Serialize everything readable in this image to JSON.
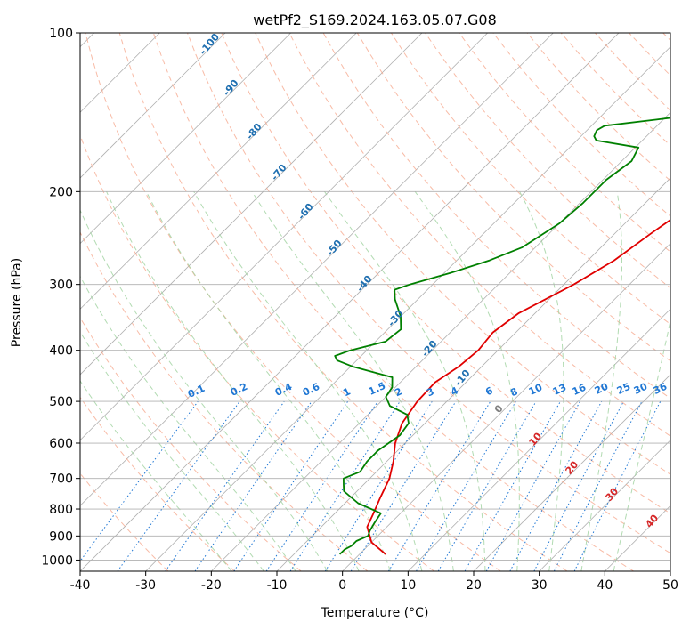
{
  "chart_data": {
    "type": "line",
    "subtype": "skew-t log-p",
    "title": "wetPf2_S169.2024.163.05.07.G08",
    "xlabel": "Temperature (°C)",
    "ylabel": "Pressure (hPa)",
    "xlim": [
      -40,
      50
    ],
    "ylim": [
      1050,
      100
    ],
    "yscale": "log",
    "grid": true,
    "xticks": [
      "-40",
      "-30",
      "-20",
      "-10",
      "0",
      "10",
      "20",
      "30",
      "40",
      "50"
    ],
    "yticks": [
      "100",
      "200",
      "300",
      "400",
      "500",
      "600",
      "700",
      "800",
      "900",
      "1000"
    ],
    "series": [
      {
        "role": "temperature",
        "color": "#e00000",
        "points": [
          [
            4,
            975
          ],
          [
            0,
            925
          ],
          [
            -3,
            865
          ],
          [
            -4,
            820
          ],
          [
            -5.5,
            760
          ],
          [
            -7,
            700
          ],
          [
            -9,
            650
          ],
          [
            -11.5,
            600
          ],
          [
            -13.5,
            550
          ],
          [
            -14.5,
            500
          ],
          [
            -14.7,
            460
          ],
          [
            -13.5,
            430
          ],
          [
            -13,
            400
          ],
          [
            -13.5,
            370
          ],
          [
            -12.5,
            340
          ],
          [
            -8.5,
            300
          ],
          [
            -6,
            270
          ],
          [
            -4.5,
            240
          ],
          [
            -2.5,
            210
          ],
          [
            -1,
            180
          ],
          [
            0,
            160
          ],
          [
            1,
            150
          ],
          [
            3,
            140
          ],
          [
            6,
            125
          ],
          [
            8,
            110
          ],
          [
            9.5,
            100
          ]
        ]
      },
      {
        "role": "dewpoint",
        "color": "#008000",
        "points": [
          [
            -3,
            975
          ],
          [
            -3,
            955
          ],
          [
            -2.5,
            940
          ],
          [
            -2.5,
            920
          ],
          [
            -1.5,
            900
          ],
          [
            -2,
            880
          ],
          [
            -2.5,
            850
          ],
          [
            -3,
            815
          ],
          [
            -8,
            780
          ],
          [
            -12,
            740
          ],
          [
            -13,
            720
          ],
          [
            -14,
            700
          ],
          [
            -12.5,
            680
          ],
          [
            -13,
            650
          ],
          [
            -13,
            620
          ],
          [
            -12,
            580
          ],
          [
            -12.5,
            550
          ],
          [
            -14,
            530
          ],
          [
            -18,
            510
          ],
          [
            -20,
            490
          ],
          [
            -20.5,
            470
          ],
          [
            -22,
            450
          ],
          [
            -29.5,
            430
          ],
          [
            -33,
            418
          ],
          [
            -34,
            410
          ],
          [
            -32.5,
            400
          ],
          [
            -28.5,
            385
          ],
          [
            -28,
            365
          ],
          [
            -30,
            345
          ],
          [
            -33.5,
            320
          ],
          [
            -35,
            307
          ],
          [
            -33.5,
            300
          ],
          [
            -29,
            285
          ],
          [
            -25,
            270
          ],
          [
            -22,
            255
          ],
          [
            -20,
            230
          ],
          [
            -19.5,
            210
          ],
          [
            -19.5,
            190
          ],
          [
            -18.5,
            175
          ],
          [
            -19.5,
            165
          ],
          [
            -27,
            160
          ],
          [
            -28,
            157
          ],
          [
            -28.5,
            153
          ],
          [
            -28,
            150
          ],
          [
            -21,
            146
          ],
          [
            -16,
            143
          ],
          [
            -12,
            135
          ],
          [
            -10,
            125
          ],
          [
            -8,
            115
          ],
          [
            -5,
            100
          ]
        ]
      }
    ],
    "dry_adiabat_labels": [
      "-100",
      "-90",
      "-80",
      "-70",
      "-60",
      "-50",
      "-40",
      "-30",
      "-20",
      "-10",
      "0",
      "10",
      "20",
      "30",
      "40"
    ],
    "mixing_ratio_labels": [
      "0.1",
      "0.2",
      "0.4",
      "0.6",
      "1",
      "1.5",
      "2",
      "3",
      "4",
      "6",
      "8",
      "10",
      "13",
      "16",
      "20",
      "25",
      "30",
      "36"
    ],
    "colors": {
      "temperature": "#e00000",
      "dewpoint": "#008000",
      "isotherm": "#b0b0b0",
      "dry_adiabat": "#f6a488",
      "moist_adiabat": "#9fd29f",
      "mixing_ratio": "#1f77d4",
      "label_blue": "#1f6fb0",
      "label_red": "#d62728",
      "label_gray": "#7f7f7f"
    }
  }
}
